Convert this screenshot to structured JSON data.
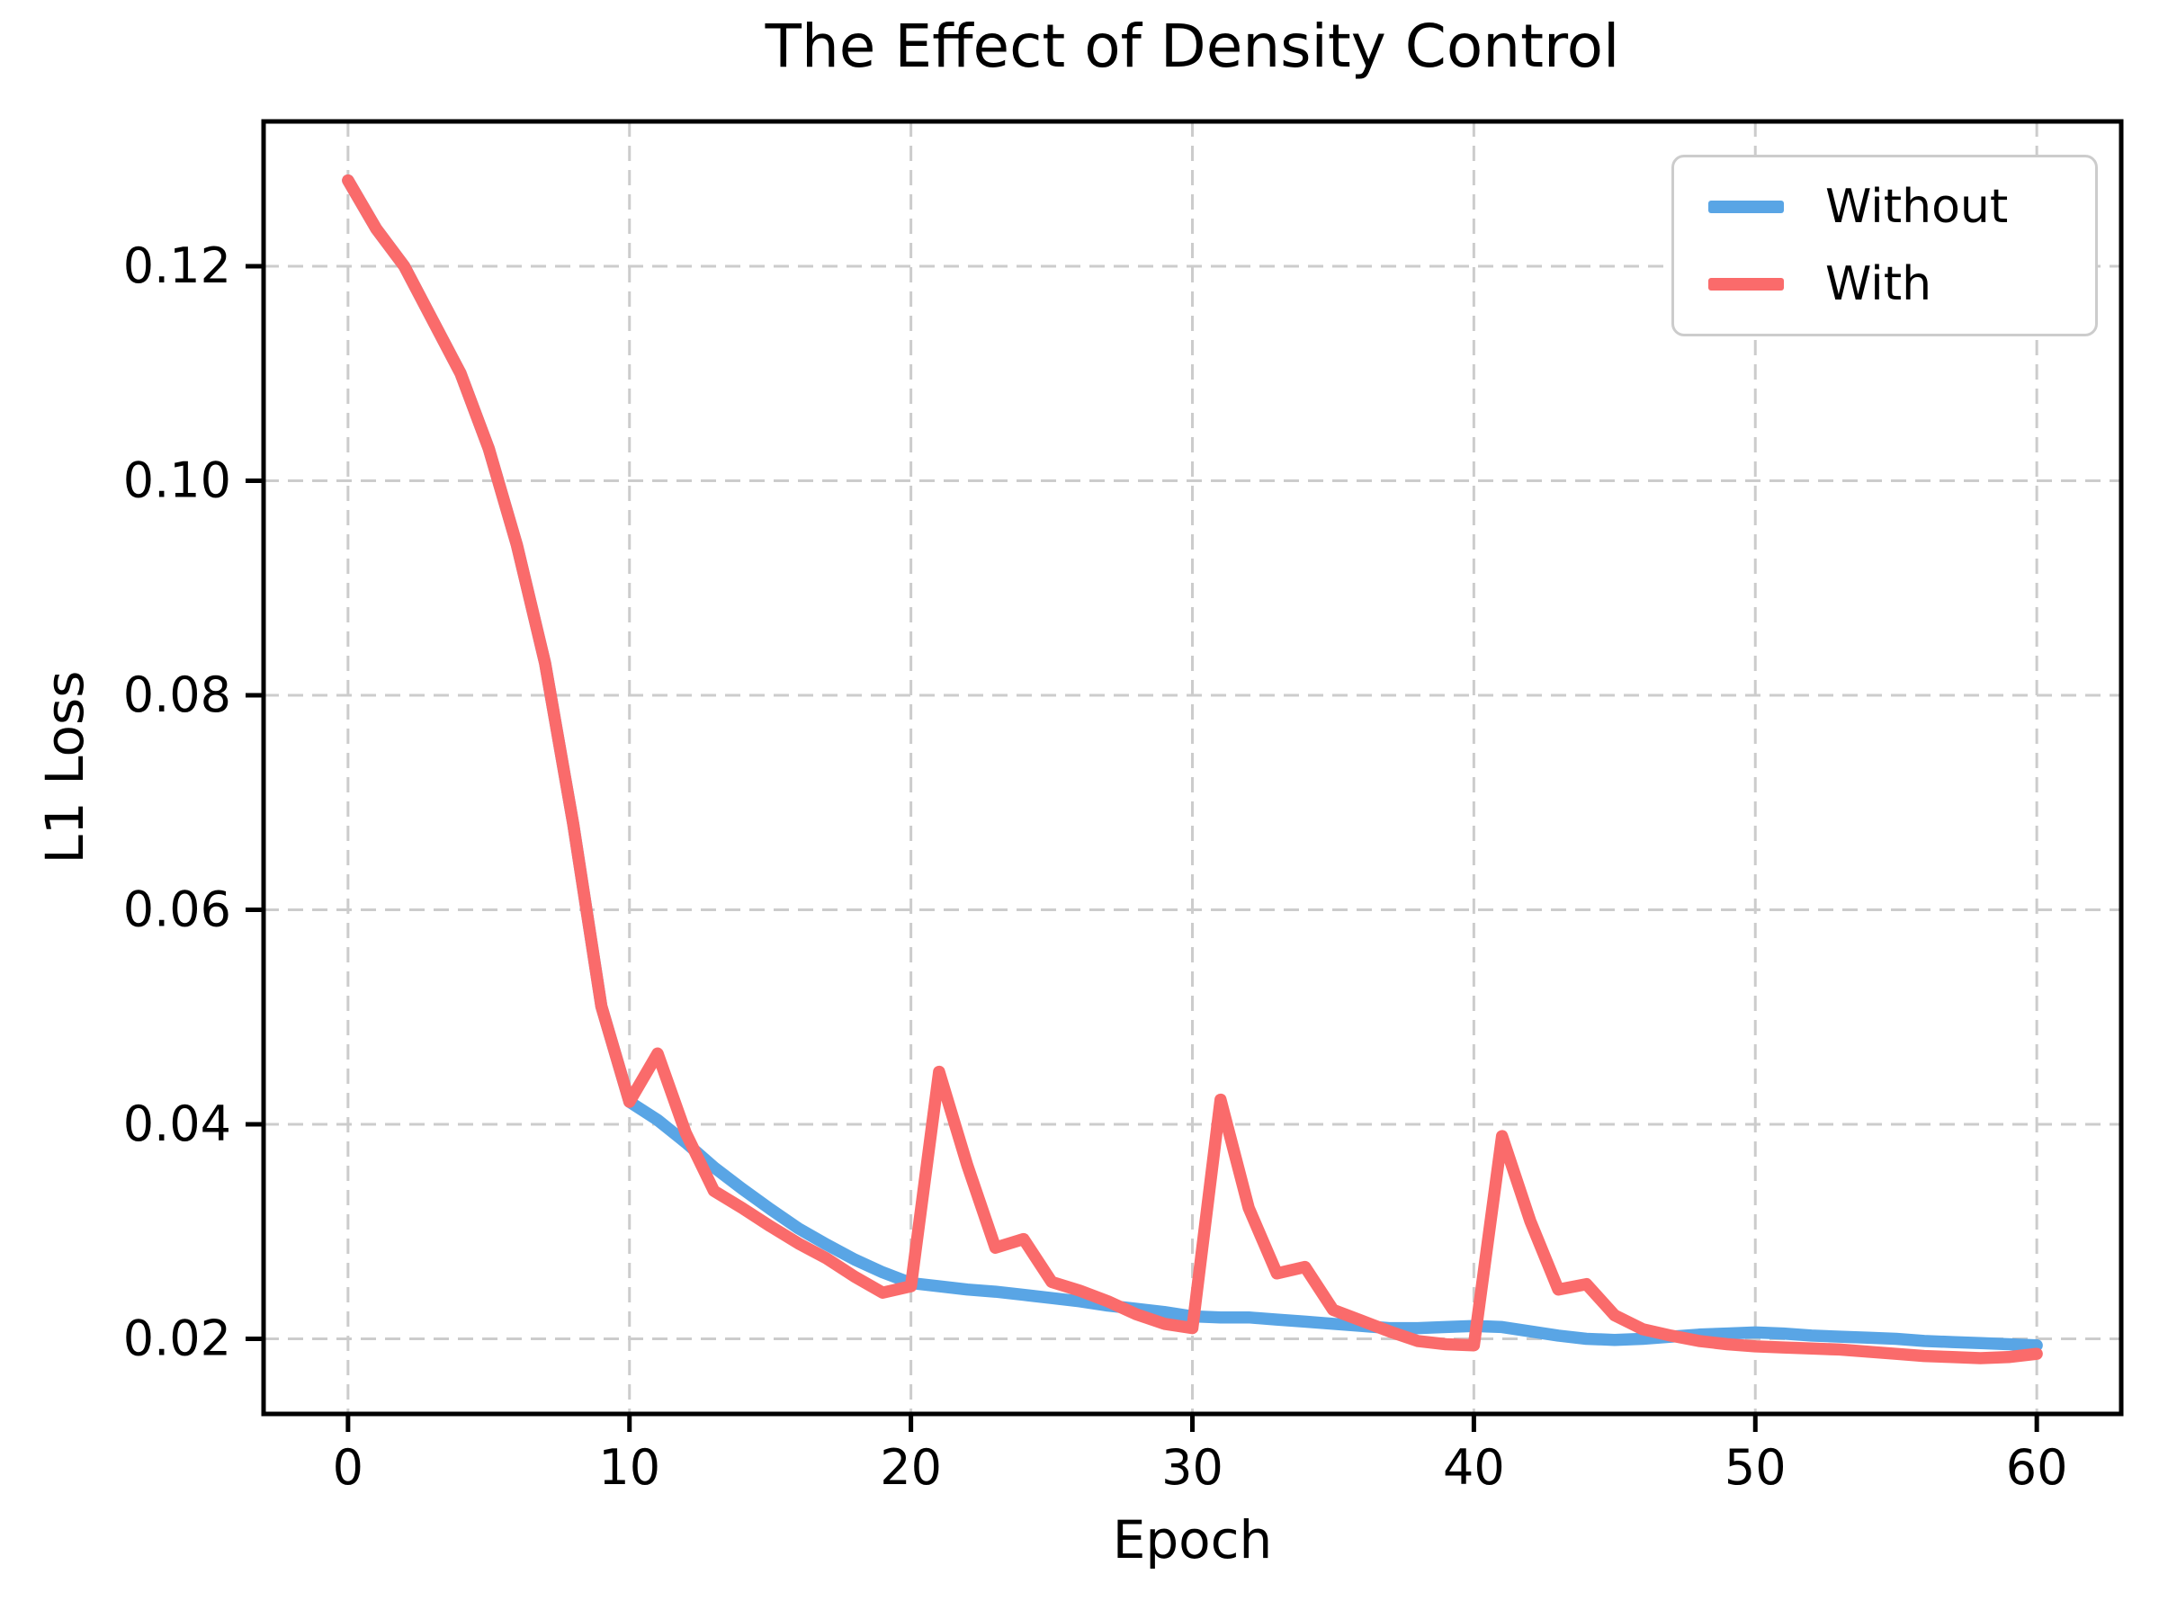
{
  "figure": {
    "background": "#ffffff",
    "frame_color": "#000000",
    "grid_color": "#cccccc"
  },
  "chart_data": {
    "type": "line",
    "title": "The Effect of Density Control",
    "xlabel": "Epoch",
    "ylabel": "L1 Loss",
    "grid": true,
    "grid_style": "dashed",
    "legend_position": "upper right",
    "xlim": [
      -3,
      63
    ],
    "ylim": [
      0.013,
      0.1335
    ],
    "xticks": [
      0,
      10,
      20,
      30,
      40,
      50,
      60
    ],
    "xtick_labels": [
      "0",
      "10",
      "20",
      "30",
      "40",
      "50",
      "60"
    ],
    "yticks": [
      0.02,
      0.04,
      0.06,
      0.08,
      0.1,
      0.12
    ],
    "ytick_labels": [
      "0.02",
      "0.04",
      "0.06",
      "0.08",
      "0.10",
      "0.12"
    ],
    "x": [
      0,
      1,
      2,
      3,
      4,
      5,
      6,
      7,
      8,
      9,
      10,
      11,
      12,
      13,
      14,
      15,
      16,
      17,
      18,
      19,
      20,
      21,
      22,
      23,
      24,
      25,
      26,
      27,
      28,
      29,
      30,
      31,
      32,
      33,
      34,
      35,
      36,
      37,
      38,
      39,
      40,
      41,
      42,
      43,
      44,
      45,
      46,
      47,
      48,
      49,
      50,
      51,
      52,
      53,
      54,
      55,
      56,
      57,
      58,
      59,
      60
    ],
    "series": [
      {
        "name": "Without",
        "color": "#59A5E5",
        "values": [
          0.128,
          0.1235,
          0.12,
          0.115,
          0.11,
          0.103,
          0.094,
          0.083,
          0.068,
          0.051,
          0.0421,
          0.0404,
          0.0383,
          0.036,
          0.034,
          0.0321,
          0.0303,
          0.0288,
          0.0274,
          0.0262,
          0.0252,
          0.0249,
          0.0246,
          0.0244,
          0.0241,
          0.0238,
          0.0235,
          0.0231,
          0.0228,
          0.0225,
          0.0221,
          0.022,
          0.022,
          0.0218,
          0.0216,
          0.0214,
          0.0212,
          0.021,
          0.021,
          0.0211,
          0.0212,
          0.0211,
          0.0207,
          0.0203,
          0.02,
          0.0199,
          0.02,
          0.0202,
          0.0204,
          0.0205,
          0.0206,
          0.0205,
          0.0203,
          0.0202,
          0.0201,
          0.02,
          0.0198,
          0.0197,
          0.0196,
          0.0195,
          0.0194
        ]
      },
      {
        "name": "With",
        "color": "#FA6B6B",
        "values": [
          0.128,
          0.1235,
          0.12,
          0.115,
          0.11,
          0.103,
          0.094,
          0.083,
          0.068,
          0.051,
          0.0421,
          0.0466,
          0.0392,
          0.0338,
          0.0322,
          0.0305,
          0.0289,
          0.0275,
          0.0258,
          0.0243,
          0.0249,
          0.0449,
          0.0362,
          0.0285,
          0.0293,
          0.0253,
          0.0245,
          0.0235,
          0.0223,
          0.0214,
          0.021,
          0.0423,
          0.0322,
          0.0261,
          0.0267,
          0.0227,
          0.0217,
          0.0207,
          0.0198,
          0.0195,
          0.0194,
          0.0389,
          0.031,
          0.0246,
          0.0251,
          0.0222,
          0.0209,
          0.0203,
          0.0198,
          0.0195,
          0.0193,
          0.0192,
          0.0191,
          0.019,
          0.0188,
          0.0186,
          0.0184,
          0.0183,
          0.0182,
          0.0183,
          0.0186
        ]
      }
    ]
  }
}
